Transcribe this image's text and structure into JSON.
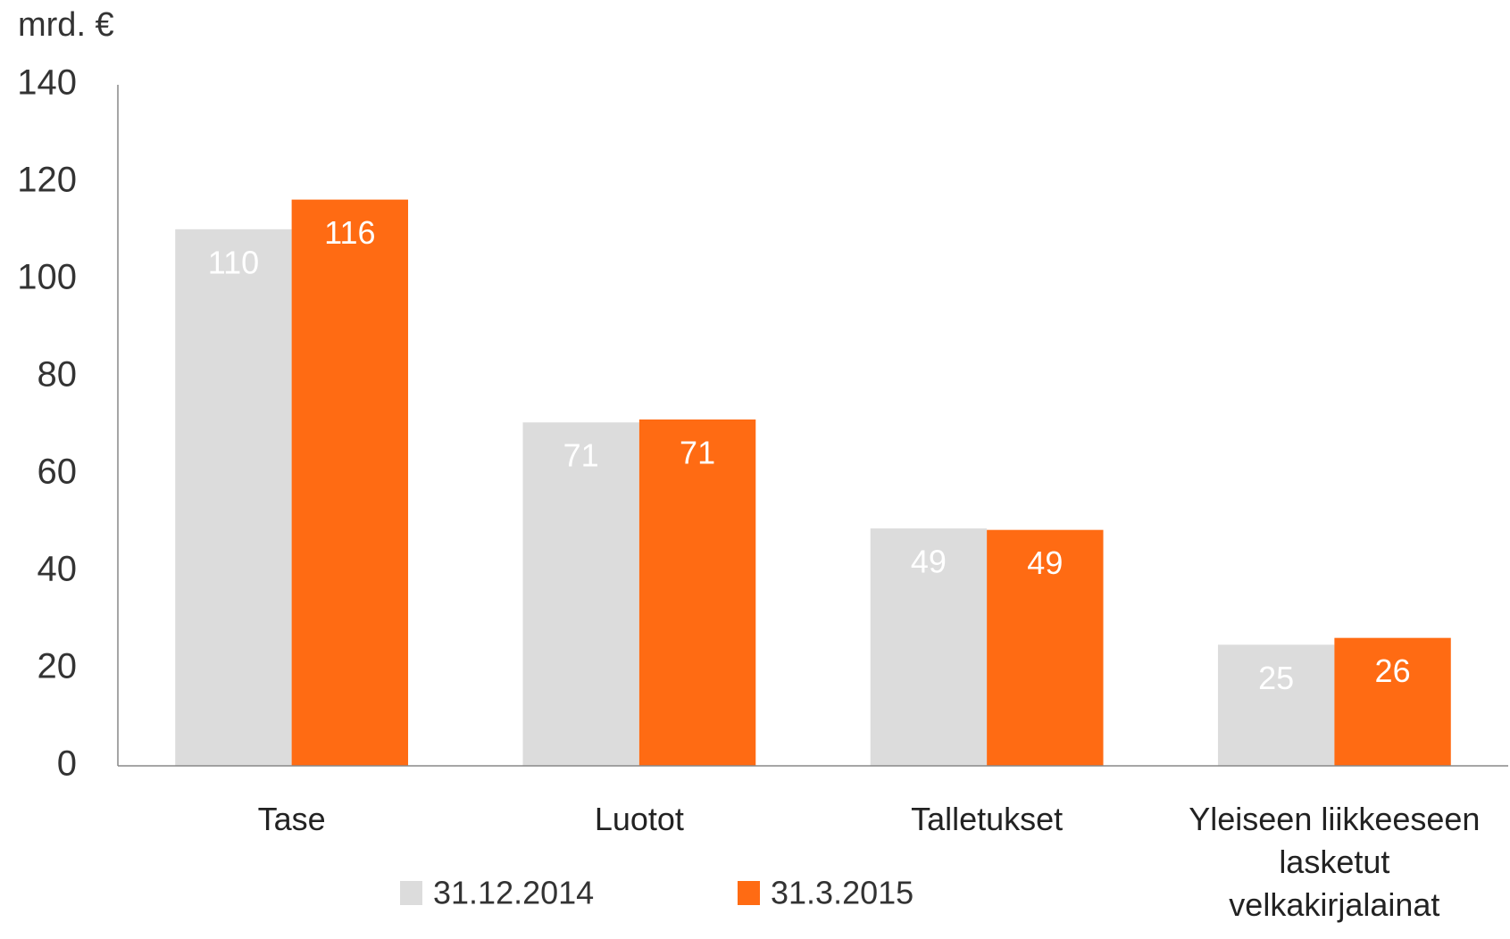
{
  "chart_data": {
    "type": "bar",
    "y_unit": "mrd. €",
    "categories": [
      "Tase",
      "Luotot",
      "Talletukset",
      "Yleiseen liikkeeseen lasketut velkakirjalainat"
    ],
    "series": [
      {
        "name": "31.12.2014",
        "color": "#dcdcdc",
        "label_color": "#ffffff",
        "values": [
          110.3,
          70.6,
          48.8,
          24.9
        ],
        "value_labels": [
          "110",
          "71",
          "49",
          "25"
        ]
      },
      {
        "name": "31.3.2015",
        "color": "#ff6b13",
        "label_color": "#ffffff",
        "values": [
          116.4,
          71.2,
          48.5,
          26.3
        ],
        "value_labels": [
          "116",
          "71",
          "49",
          "26"
        ]
      }
    ],
    "ylim": [
      0,
      140
    ],
    "yticks": [
      0,
      20,
      40,
      60,
      80,
      100,
      120,
      140
    ],
    "grid": false
  }
}
